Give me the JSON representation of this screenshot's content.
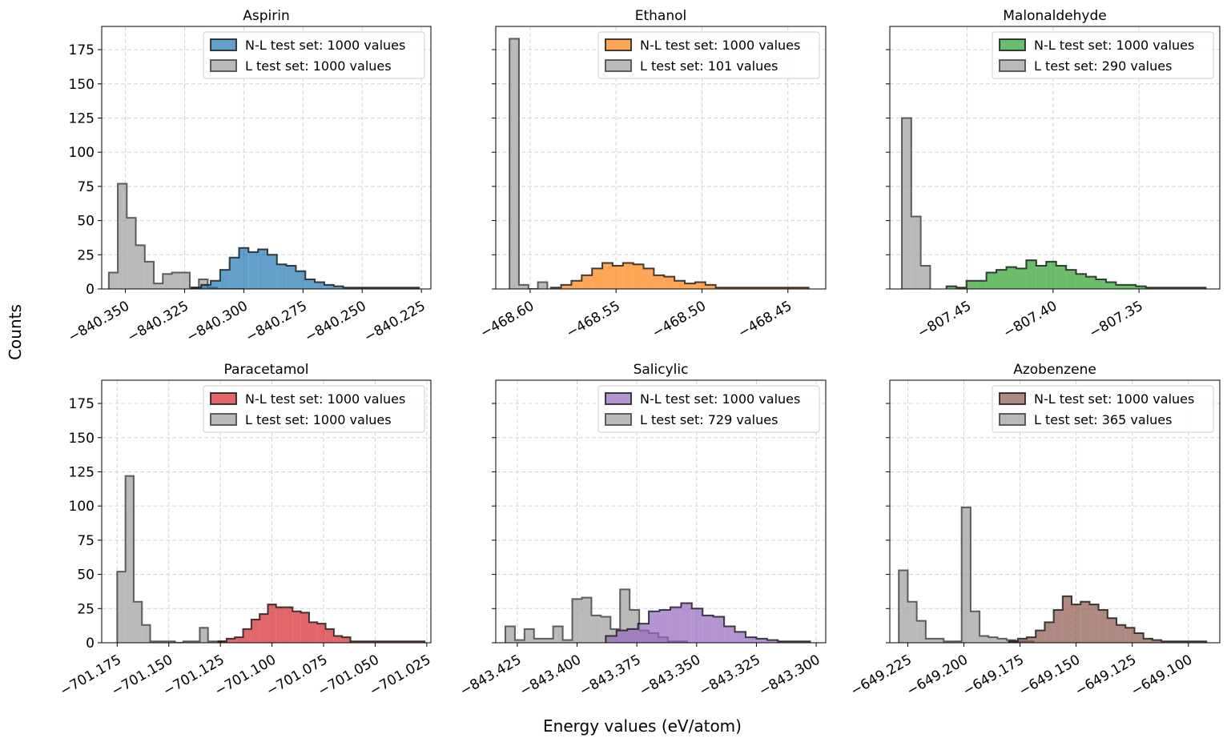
{
  "figure": {
    "xlabel": "Energy values (eV/atom)",
    "ylabel": "Counts"
  },
  "chart_data": [
    {
      "type": "bar",
      "title": "Aspirin",
      "xlim": [
        -840.36,
        -840.221
      ],
      "ylim": [
        0,
        192
      ],
      "xticks": [
        -840.35,
        -840.325,
        -840.3,
        -840.275,
        -840.25,
        -840.225
      ],
      "xtick_labels": [
        "−840.350",
        "−840.325",
        "−840.300",
        "−840.275",
        "−840.250",
        "−840.225"
      ],
      "yticks": [
        0,
        25,
        50,
        75,
        100,
        125,
        150,
        175
      ],
      "grid": true,
      "legend_position": "top-right",
      "series": [
        {
          "name": "L test set: 1000 values",
          "color": "#a9a9a9",
          "bins": [
            -840.357,
            -840.3532,
            -840.3494,
            -840.3456,
            -840.3418,
            -840.338,
            -840.3342,
            -840.3304,
            -840.3266,
            -840.3228,
            -840.319,
            -840.3152,
            -840.3114,
            -840.3076,
            -840.3038,
            -840.3
          ],
          "counts": [
            12,
            77,
            52,
            32,
            20,
            4,
            11,
            12,
            12,
            1,
            7,
            1,
            0,
            0,
            0
          ]
        },
        {
          "name": "N-L test set: 1000 values",
          "color": "#1f77b4",
          "bins": [
            -840.322,
            -840.318,
            -840.314,
            -840.31,
            -840.306,
            -840.302,
            -840.298,
            -840.294,
            -840.29,
            -840.286,
            -840.282,
            -840.278,
            -840.274,
            -840.27,
            -840.266,
            -840.262,
            -840.258,
            -840.254,
            -840.25,
            -840.246,
            -840.242,
            -840.238,
            -840.234,
            -840.23,
            -840.226
          ],
          "counts": [
            1,
            3,
            6,
            14,
            23,
            30,
            27,
            29,
            25,
            18,
            17,
            13,
            7,
            5,
            3,
            2,
            1,
            1,
            1,
            1,
            1,
            1,
            1,
            1
          ]
        }
      ]
    },
    {
      "type": "bar",
      "title": "Ethanol",
      "xlim": [
        -468.62,
        -468.428
      ],
      "ylim": [
        0,
        192
      ],
      "xticks": [
        -468.6,
        -468.55,
        -468.5,
        -468.45
      ],
      "xtick_labels": [
        "−468.60",
        "−468.55",
        "−468.50",
        "−468.45"
      ],
      "yticks": [
        0,
        25,
        50,
        75,
        100,
        125,
        150,
        175
      ],
      "grid": true,
      "legend_position": "top-right",
      "series": [
        {
          "name": "L test set: 101 values",
          "color": "#a9a9a9",
          "bins": [
            -468.612,
            -468.6065,
            -468.601,
            -468.5955,
            -468.59
          ],
          "counts": [
            183,
            3,
            0,
            5
          ]
        },
        {
          "name": "N-L test set: 1000 values",
          "color": "#ff7f0e",
          "bins": [
            -468.588,
            -468.582,
            -468.576,
            -468.57,
            -468.564,
            -468.558,
            -468.552,
            -468.546,
            -468.54,
            -468.534,
            -468.528,
            -468.522,
            -468.516,
            -468.51,
            -468.504,
            -468.498,
            -468.492,
            -468.486,
            -468.48,
            -468.474,
            -468.468,
            -468.462,
            -468.456,
            -468.45,
            -468.444,
            -468.438
          ],
          "counts": [
            1,
            3,
            6,
            10,
            15,
            19,
            17,
            19,
            18,
            15,
            10,
            9,
            6,
            4,
            5,
            3,
            1,
            1,
            1,
            1,
            1,
            1,
            1,
            1,
            1
          ]
        }
      ]
    },
    {
      "type": "bar",
      "title": "Malonaldehyde",
      "xlim": [
        -807.495,
        -807.303
      ],
      "ylim": [
        0,
        192
      ],
      "xticks": [
        -807.45,
        -807.4,
        -807.35
      ],
      "xtick_labels": [
        "−807.45",
        "−807.40",
        "−807.35"
      ],
      "yticks": [
        0,
        25,
        50,
        75,
        100,
        125,
        150,
        175
      ],
      "grid": true,
      "legend_position": "top-right",
      "series": [
        {
          "name": "L test set: 290 values",
          "color": "#a9a9a9",
          "bins": [
            -807.488,
            -807.4825,
            -807.477,
            -807.4715
          ],
          "counts": [
            125,
            53,
            17
          ]
        },
        {
          "name": "N-L test set: 1000 values",
          "color": "#2ca02c",
          "bins": [
            -807.462,
            -807.4562,
            -807.4504,
            -807.4446,
            -807.4388,
            -807.433,
            -807.4272,
            -807.4214,
            -807.4156,
            -807.4098,
            -807.404,
            -807.3982,
            -807.3924,
            -807.3866,
            -807.3808,
            -807.375,
            -807.3692,
            -807.3634,
            -807.3576,
            -807.3518,
            -807.346,
            -807.3402,
            -807.3344,
            -807.3286,
            -807.3228,
            -807.317,
            -807.3112
          ],
          "counts": [
            2,
            1,
            6,
            6,
            12,
            14,
            16,
            15,
            21,
            17,
            20,
            17,
            14,
            11,
            9,
            7,
            5,
            3,
            3,
            2,
            1,
            1,
            1,
            1,
            1,
            1
          ]
        }
      ]
    },
    {
      "type": "bar",
      "title": "Paracetamol",
      "xlim": [
        -701.1825,
        -701.023
      ],
      "ylim": [
        0,
        192
      ],
      "xticks": [
        -701.175,
        -701.15,
        -701.125,
        -701.1,
        -701.075,
        -701.05,
        -701.025
      ],
      "xtick_labels": [
        "−701.175",
        "−701.150",
        "−701.125",
        "−701.100",
        "−701.075",
        "−701.050",
        "−701.025"
      ],
      "yticks": [
        0,
        25,
        50,
        75,
        100,
        125,
        150,
        175
      ],
      "grid": true,
      "legend_position": "top-right",
      "series": [
        {
          "name": "L test set: 1000 values",
          "color": "#a9a9a9",
          "bins": [
            -701.175,
            -701.171,
            -701.167,
            -701.163,
            -701.159,
            -701.155,
            -701.151,
            -701.147,
            -701.143,
            -701.139,
            -701.135,
            -701.131,
            -701.127,
            -701.123
          ],
          "counts": [
            52,
            122,
            30,
            13,
            1,
            1,
            1,
            0,
            1,
            1,
            11,
            1,
            1
          ]
        },
        {
          "name": "N-L test set: 1000 values",
          "color": "#d62728",
          "bins": [
            -701.126,
            -701.122,
            -701.118,
            -701.114,
            -701.11,
            -701.106,
            -701.102,
            -701.098,
            -701.094,
            -701.09,
            -701.086,
            -701.082,
            -701.078,
            -701.074,
            -701.07,
            -701.066,
            -701.062,
            -701.058,
            -701.054,
            -701.05,
            -701.046,
            -701.042,
            -701.038,
            -701.034,
            -701.03,
            -701.026
          ],
          "counts": [
            1,
            3,
            4,
            10,
            17,
            21,
            28,
            26,
            26,
            23,
            22,
            15,
            14,
            10,
            5,
            4,
            1,
            1,
            1,
            1,
            1,
            1,
            1,
            1,
            1
          ]
        }
      ]
    },
    {
      "type": "bar",
      "title": "Salicylic",
      "xlim": [
        -843.434,
        -843.296
      ],
      "ylim": [
        0,
        192
      ],
      "xticks": [
        -843.425,
        -843.4,
        -843.375,
        -843.35,
        -843.325,
        -843.3
      ],
      "xtick_labels": [
        "−843.425",
        "−843.400",
        "−843.375",
        "−843.350",
        "−843.325",
        "−843.300"
      ],
      "yticks": [
        0,
        25,
        50,
        75,
        100,
        125,
        150,
        175
      ],
      "grid": true,
      "legend_position": "top-right",
      "series": [
        {
          "name": "L test set: 729 values",
          "color": "#a9a9a9",
          "bins": [
            -843.43,
            -843.426,
            -843.422,
            -843.418,
            -843.414,
            -843.41,
            -843.406,
            -843.402,
            -843.398,
            -843.394,
            -843.39,
            -843.386,
            -843.382,
            -843.378,
            -843.374,
            -843.37,
            -843.366,
            -843.362,
            -843.358,
            -843.354
          ],
          "counts": [
            12,
            2,
            10,
            3,
            3,
            12,
            2,
            32,
            33,
            20,
            19,
            10,
            39,
            24,
            9,
            7,
            4,
            1,
            1
          ]
        },
        {
          "name": "N-L test set: 1000 values",
          "color": "#9467bd",
          "bins": [
            -843.388,
            -843.3835,
            -843.379,
            -843.3745,
            -843.37,
            -843.3655,
            -843.361,
            -843.3565,
            -843.352,
            -843.3475,
            -843.343,
            -843.3385,
            -843.334,
            -843.3295,
            -843.325,
            -843.3205,
            -843.316,
            -843.3115,
            -843.307,
            -843.3025
          ],
          "counts": [
            5,
            9,
            10,
            14,
            23,
            24,
            26,
            29,
            25,
            20,
            19,
            12,
            8,
            4,
            3,
            2,
            1,
            1,
            1
          ]
        }
      ]
    },
    {
      "type": "bar",
      "title": "Azobenzene",
      "xlim": [
        -649.233,
        -649.086
      ],
      "ylim": [
        0,
        192
      ],
      "xticks": [
        -649.225,
        -649.2,
        -649.175,
        -649.15,
        -649.125,
        -649.1
      ],
      "xtick_labels": [
        "−649.225",
        "−649.200",
        "−649.175",
        "−649.150",
        "−649.125",
        "−649.100"
      ],
      "yticks": [
        0,
        25,
        50,
        75,
        100,
        125,
        150,
        175
      ],
      "grid": true,
      "legend_position": "top-right",
      "series": [
        {
          "name": "L test set: 365 values",
          "color": "#a9a9a9",
          "bins": [
            -649.229,
            -649.225,
            -649.221,
            -649.217,
            -649.213,
            -649.209,
            -649.205,
            -649.201,
            -649.197,
            -649.193,
            -649.189,
            -649.185,
            -649.181,
            -649.177,
            -649.173,
            -649.169
          ],
          "counts": [
            53,
            30,
            16,
            3,
            3,
            1,
            1,
            99,
            23,
            5,
            4,
            3,
            2,
            1,
            1
          ]
        },
        {
          "name": "N-L test set: 1000 values",
          "color": "#8c564b",
          "bins": [
            -649.18,
            -649.176,
            -649.172,
            -649.168,
            -649.164,
            -649.16,
            -649.156,
            -649.152,
            -649.148,
            -649.144,
            -649.14,
            -649.136,
            -649.132,
            -649.128,
            -649.124,
            -649.12,
            -649.116,
            -649.112,
            -649.108,
            -649.104,
            -649.1,
            -649.096,
            -649.092
          ],
          "counts": [
            1,
            3,
            4,
            9,
            15,
            24,
            34,
            28,
            30,
            28,
            24,
            18,
            13,
            11,
            7,
            3,
            2,
            1,
            1,
            1,
            1,
            1
          ]
        }
      ]
    }
  ]
}
